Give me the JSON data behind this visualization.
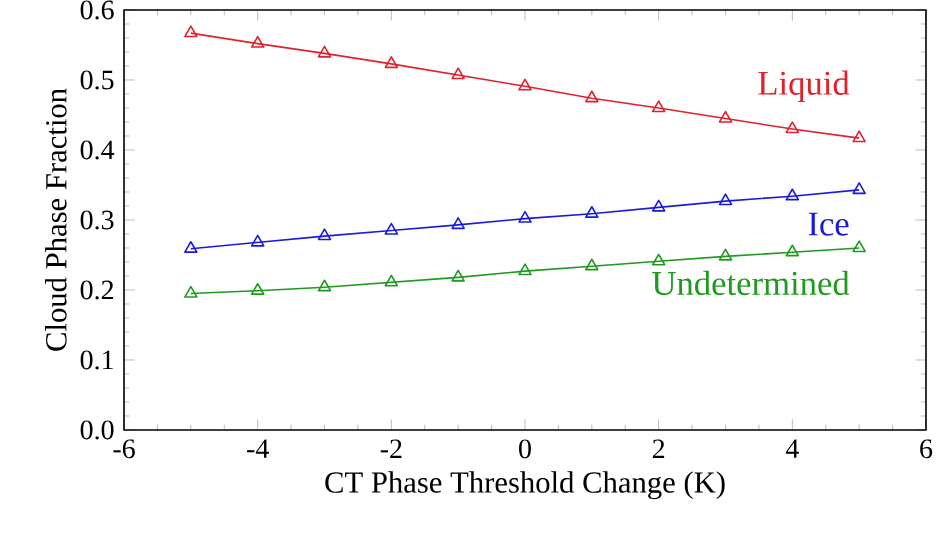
{
  "chart_data": {
    "type": "line",
    "xlabel": "CT Phase Threshold Change (K)",
    "ylabel": "Cloud Phase Fraction",
    "x": [
      -5,
      -4,
      -3,
      -2,
      -1,
      0,
      1,
      2,
      3,
      4,
      5
    ],
    "series": [
      {
        "name": "Liquid",
        "color": "#e0202a",
        "values": [
          0.567,
          0.552,
          0.538,
          0.523,
          0.507,
          0.491,
          0.474,
          0.46,
          0.445,
          0.43,
          0.417
        ]
      },
      {
        "name": "Ice",
        "color": "#1a1adc",
        "values": [
          0.259,
          0.268,
          0.277,
          0.285,
          0.293,
          0.302,
          0.309,
          0.318,
          0.327,
          0.334,
          0.343
        ]
      },
      {
        "name": "Undetermined",
        "color": "#1f9a1f",
        "values": [
          0.195,
          0.199,
          0.204,
          0.211,
          0.218,
          0.227,
          0.234,
          0.241,
          0.248,
          0.254,
          0.26
        ]
      }
    ],
    "xlim": [
      -6,
      6
    ],
    "xticks": [
      -6,
      -4,
      -2,
      0,
      2,
      4,
      6
    ],
    "ylim": [
      0,
      0.6
    ],
    "yticks": [
      {
        "value": 0,
        "label": "0.0"
      },
      {
        "value": 0.1,
        "label": "0.1"
      },
      {
        "value": 0.2,
        "label": "0.2"
      },
      {
        "value": 0.3,
        "label": "0.3"
      },
      {
        "value": 0.4,
        "label": "0.4"
      },
      {
        "value": 0.5,
        "label": "0.5"
      },
      {
        "value": 0.6,
        "label": "0.6"
      }
    ],
    "marker": "triangle"
  }
}
